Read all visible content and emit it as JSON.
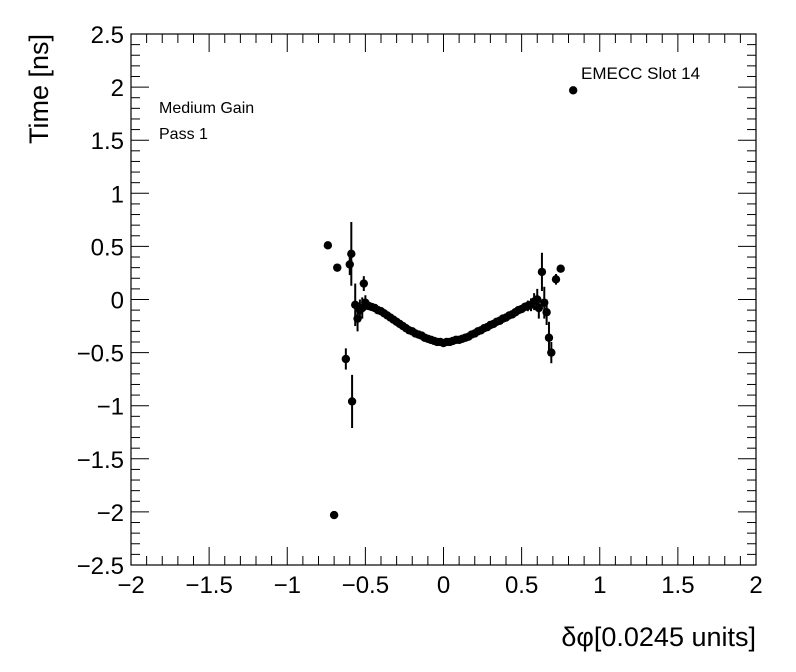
{
  "chart_data": {
    "type": "scatter",
    "title": "",
    "xlabel": "δφ[0.0245 units]",
    "ylabel": "Time [ns]",
    "xlim": [
      -2,
      2
    ],
    "ylim": [
      -2.5,
      2.5
    ],
    "x_ticks": [
      -2,
      -1.5,
      -1,
      -0.5,
      0,
      0.5,
      1,
      1.5,
      2
    ],
    "x_tick_labels": [
      "−2",
      "−1.5",
      "−1",
      "−0.5",
      "0",
      "0.5",
      "1",
      "1.5",
      "2"
    ],
    "y_ticks": [
      -2.5,
      -2,
      -1.5,
      -1,
      -0.5,
      0,
      0.5,
      1,
      1.5,
      2,
      2.5
    ],
    "y_tick_labels": [
      "−2.5",
      "−2",
      "−1.5",
      "−1",
      "−0.5",
      "0",
      "0.5",
      "1",
      "1.5",
      "2",
      "2.5"
    ],
    "grid": false,
    "marker_color": "#000000",
    "annotations": {
      "top_right": "EMECC Slot 14",
      "line1": "Medium Gain",
      "line2": "Pass 1"
    },
    "points": [
      {
        "x": -0.74,
        "y": 0.51,
        "err": 0.0
      },
      {
        "x": -0.68,
        "y": 0.3,
        "err": 0.0
      },
      {
        "x": -0.7,
        "y": -2.03,
        "err": 0.0
      },
      {
        "x": -0.625,
        "y": -0.56,
        "err": 0.1
      },
      {
        "x": -0.6,
        "y": 0.33,
        "err": 0.1
      },
      {
        "x": -0.59,
        "y": 0.43,
        "err": 0.3
      },
      {
        "x": -0.585,
        "y": -0.96,
        "err": 0.25
      },
      {
        "x": -0.565,
        "y": -0.05,
        "err": 0.2
      },
      {
        "x": -0.55,
        "y": -0.18,
        "err": 0.12
      },
      {
        "x": -0.535,
        "y": -0.1,
        "err": 0.1
      },
      {
        "x": -0.52,
        "y": -0.08,
        "err": 0.1
      },
      {
        "x": -0.51,
        "y": 0.15,
        "err": 0.07
      },
      {
        "x": -0.5,
        "y": -0.03,
        "err": 0.07
      },
      {
        "x": -0.48,
        "y": -0.06,
        "err": 0.04
      },
      {
        "x": -0.46,
        "y": -0.07,
        "err": 0.03
      },
      {
        "x": -0.44,
        "y": -0.08,
        "err": 0.03
      },
      {
        "x": -0.42,
        "y": -0.1,
        "err": 0.02
      },
      {
        "x": -0.4,
        "y": -0.11,
        "err": 0.02
      },
      {
        "x": -0.38,
        "y": -0.13,
        "err": 0.02
      },
      {
        "x": -0.36,
        "y": -0.15,
        "err": 0.02
      },
      {
        "x": -0.34,
        "y": -0.17,
        "err": 0.02
      },
      {
        "x": -0.32,
        "y": -0.19,
        "err": 0.02
      },
      {
        "x": -0.3,
        "y": -0.21,
        "err": 0.02
      },
      {
        "x": -0.28,
        "y": -0.23,
        "err": 0.02
      },
      {
        "x": -0.26,
        "y": -0.25,
        "err": 0.02
      },
      {
        "x": -0.24,
        "y": -0.27,
        "err": 0.02
      },
      {
        "x": -0.22,
        "y": -0.29,
        "err": 0.02
      },
      {
        "x": -0.2,
        "y": -0.3,
        "err": 0.02
      },
      {
        "x": -0.18,
        "y": -0.32,
        "err": 0.02
      },
      {
        "x": -0.16,
        "y": -0.33,
        "err": 0.02
      },
      {
        "x": -0.14,
        "y": -0.34,
        "err": 0.02
      },
      {
        "x": -0.12,
        "y": -0.36,
        "err": 0.02
      },
      {
        "x": -0.1,
        "y": -0.37,
        "err": 0.02
      },
      {
        "x": -0.08,
        "y": -0.38,
        "err": 0.02
      },
      {
        "x": -0.06,
        "y": -0.39,
        "err": 0.02
      },
      {
        "x": -0.04,
        "y": -0.4,
        "err": 0.02
      },
      {
        "x": -0.02,
        "y": -0.4,
        "err": 0.02
      },
      {
        "x": 0.0,
        "y": -0.41,
        "err": 0.02
      },
      {
        "x": 0.02,
        "y": -0.4,
        "err": 0.02
      },
      {
        "x": 0.04,
        "y": -0.4,
        "err": 0.02
      },
      {
        "x": 0.06,
        "y": -0.39,
        "err": 0.02
      },
      {
        "x": 0.08,
        "y": -0.38,
        "err": 0.02
      },
      {
        "x": 0.1,
        "y": -0.38,
        "err": 0.02
      },
      {
        "x": 0.12,
        "y": -0.37,
        "err": 0.02
      },
      {
        "x": 0.14,
        "y": -0.36,
        "err": 0.02
      },
      {
        "x": 0.16,
        "y": -0.35,
        "err": 0.02
      },
      {
        "x": 0.18,
        "y": -0.33,
        "err": 0.02
      },
      {
        "x": 0.2,
        "y": -0.32,
        "err": 0.02
      },
      {
        "x": 0.22,
        "y": -0.3,
        "err": 0.02
      },
      {
        "x": 0.24,
        "y": -0.29,
        "err": 0.02
      },
      {
        "x": 0.26,
        "y": -0.27,
        "err": 0.02
      },
      {
        "x": 0.28,
        "y": -0.26,
        "err": 0.02
      },
      {
        "x": 0.3,
        "y": -0.24,
        "err": 0.02
      },
      {
        "x": 0.32,
        "y": -0.23,
        "err": 0.02
      },
      {
        "x": 0.34,
        "y": -0.21,
        "err": 0.02
      },
      {
        "x": 0.36,
        "y": -0.2,
        "err": 0.02
      },
      {
        "x": 0.38,
        "y": -0.18,
        "err": 0.02
      },
      {
        "x": 0.4,
        "y": -0.17,
        "err": 0.02
      },
      {
        "x": 0.42,
        "y": -0.15,
        "err": 0.02
      },
      {
        "x": 0.44,
        "y": -0.14,
        "err": 0.02
      },
      {
        "x": 0.46,
        "y": -0.12,
        "err": 0.03
      },
      {
        "x": 0.48,
        "y": -0.1,
        "err": 0.03
      },
      {
        "x": 0.5,
        "y": -0.09,
        "err": 0.03
      },
      {
        "x": 0.52,
        "y": -0.07,
        "err": 0.04
      },
      {
        "x": 0.54,
        "y": -0.06,
        "err": 0.05
      },
      {
        "x": 0.56,
        "y": -0.05,
        "err": 0.06
      },
      {
        "x": 0.58,
        "y": -0.02,
        "err": 0.08
      },
      {
        "x": 0.6,
        "y": 0.0,
        "err": 0.1
      },
      {
        "x": 0.61,
        "y": -0.08,
        "err": 0.1
      },
      {
        "x": 0.63,
        "y": 0.26,
        "err": 0.18
      },
      {
        "x": 0.645,
        "y": -0.03,
        "err": 0.15
      },
      {
        "x": 0.66,
        "y": -0.12,
        "err": 0.12
      },
      {
        "x": 0.675,
        "y": -0.36,
        "err": 0.15
      },
      {
        "x": 0.69,
        "y": -0.5,
        "err": 0.1
      },
      {
        "x": 0.72,
        "y": 0.19,
        "err": 0.05
      },
      {
        "x": 0.75,
        "y": 0.29,
        "err": 0.0
      },
      {
        "x": 0.83,
        "y": 1.97,
        "err": 0.0
      }
    ]
  }
}
